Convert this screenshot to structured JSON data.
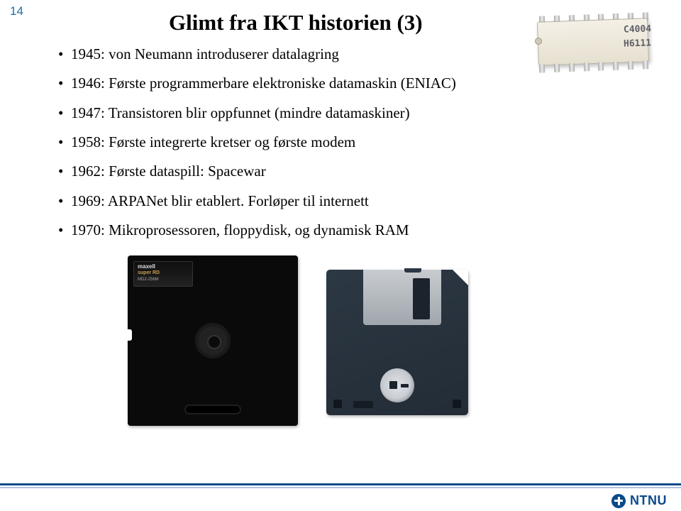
{
  "page_number": "14",
  "title": "Glimt fra IKT historien (3)",
  "bullets": [
    "1945: von Neumann introduserer datalagring",
    "1946: Første programmerbare elektroniske datamaskin (ENIAC)",
    "1947: Transistoren blir oppfunnet (mindre datamaskiner)",
    "1958: Første integrerte kretser og første modem",
    "1962: Første dataspill: Spacewar",
    "1969: ARPANet blir etablert. Forløper til internett",
    "1970: Mikroprosessoren, floppydisk, og dynamisk RAM"
  ],
  "chip": {
    "line1": "C4004",
    "line2": "H6111"
  },
  "floppy525_label": {
    "brand": "maxell",
    "line2": "super RD",
    "line3": "MD2-256M"
  },
  "logo_text": "NTNU",
  "colors": {
    "accent": "#1a6ea8",
    "footer": "#0a4a8a",
    "floppy35_body": "#2c3844",
    "floppy525_body": "#0a0a0a",
    "chip_body": "#e6e0d0"
  }
}
